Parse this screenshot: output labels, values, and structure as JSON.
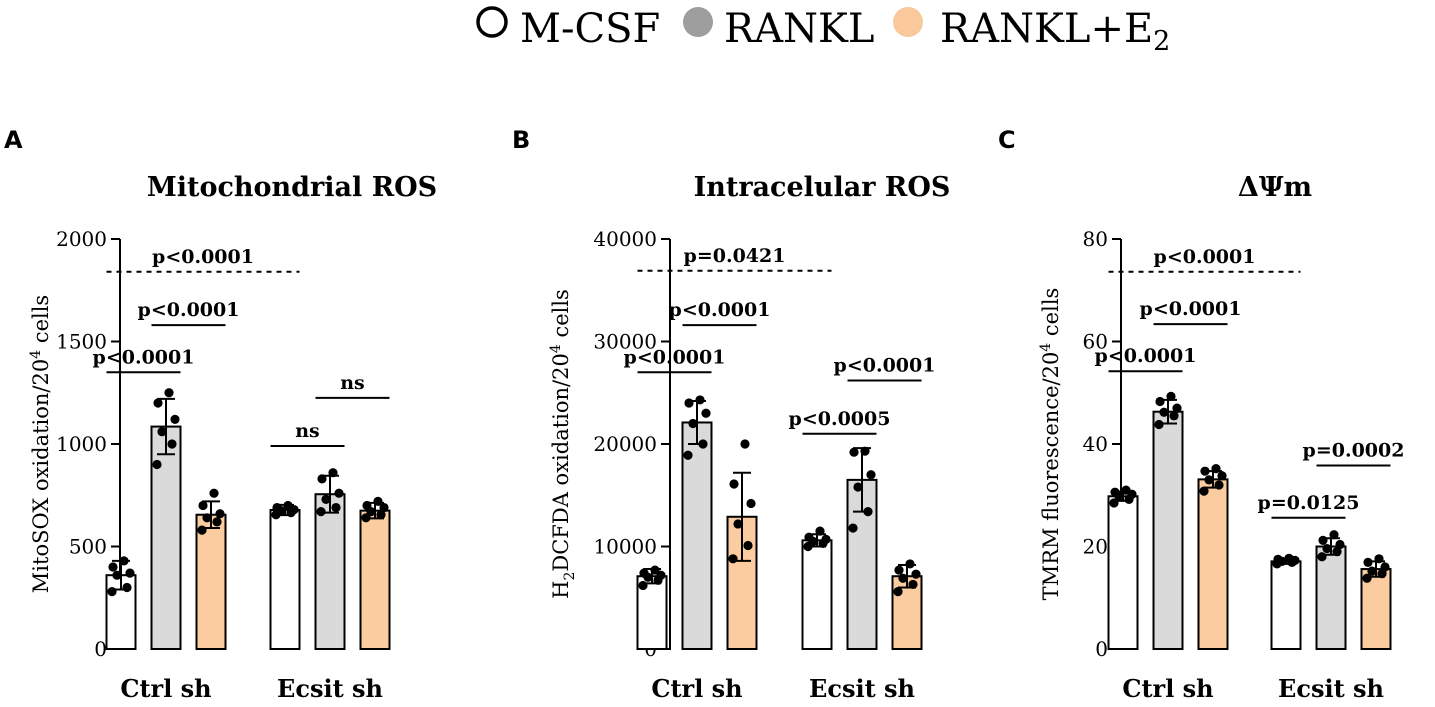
{
  "legend": {
    "items": [
      {
        "label": "M-CSF",
        "fill": "#ffffff",
        "stroke": "#000000"
      },
      {
        "label": "RANKL",
        "fill": "#9e9e9e",
        "stroke": "#9e9e9e"
      },
      {
        "label": "RANKL+E",
        "sub": "2",
        "fill": "#f9c99c",
        "stroke": "#f9c99c"
      }
    ]
  },
  "colors": {
    "mcsf": "#ffffff",
    "rankl": "#dadada",
    "e2": "#fbcc9f",
    "axis": "#000000"
  },
  "chart_data": [
    {
      "panel": "A",
      "type": "bar",
      "title": "Mitochondrial ROS",
      "ylabel": "MitoSOX oxidation/20",
      "ylabel_sup": "4",
      "ylabel_suffix": " cells",
      "ylim": [
        0,
        2000
      ],
      "yticks": [
        0,
        500,
        1000,
        1500,
        2000
      ],
      "categories": [
        "Ctrl sh",
        "Ecsit sh"
      ],
      "series": [
        {
          "name": "M-CSF",
          "means": [
            360,
            678
          ],
          "sd": [
            70,
            25
          ],
          "points": [
            [
              280,
              300,
              360,
              370,
              400,
              430
            ],
            [
              655,
              665,
              675,
              680,
              690,
              700
            ]
          ]
        },
        {
          "name": "RANKL",
          "means": [
            1085,
            755
          ],
          "sd": [
            135,
            90
          ],
          "points": [
            [
              900,
              1000,
              1060,
              1120,
              1200,
              1250
            ],
            [
              670,
              690,
              730,
              760,
              830,
              860
            ]
          ]
        },
        {
          "name": "RANKL+E2",
          "means": [
            655,
            675
          ],
          "sd": [
            65,
            38
          ],
          "points": [
            [
              580,
              620,
              640,
              660,
              700,
              760
            ],
            [
              640,
              655,
              670,
              690,
              700,
              720
            ]
          ]
        }
      ],
      "comparisons": [
        {
          "from": [
            0,
            0
          ],
          "to": [
            1,
            0
          ],
          "label": "p<0.0001",
          "y": 1840,
          "dashed": true
        },
        {
          "from": [
            0,
            1
          ],
          "to": [
            0,
            2
          ],
          "label": "p<0.0001",
          "y": 1580,
          "dashed": false
        },
        {
          "from": [
            0,
            0
          ],
          "to": [
            0,
            1
          ],
          "label": "p<0.0001",
          "y": 1350,
          "dashed": false
        },
        {
          "from": [
            1,
            1
          ],
          "to": [
            1,
            2
          ],
          "label": "ns",
          "y": 1225,
          "dashed": false
        },
        {
          "from": [
            1,
            0
          ],
          "to": [
            1,
            1
          ],
          "label": "ns",
          "y": 990,
          "dashed": false
        }
      ]
    },
    {
      "panel": "B",
      "type": "bar",
      "title": "Intracelular ROS",
      "ylabel": "H",
      "ylabel_sub": "2",
      "ylabel_mid": "DCFDA oxidation/20",
      "ylabel_sup": "4",
      "ylabel_suffix": " cells",
      "ylim": [
        0,
        40000
      ],
      "yticks": [
        0,
        10000,
        20000,
        30000,
        40000
      ],
      "categories": [
        "Ctrl sh",
        "Ecsit sh"
      ],
      "series": [
        {
          "name": "M-CSF",
          "means": [
            7100,
            10600
          ],
          "sd": [
            700,
            600
          ],
          "points": [
            [
              6200,
              6700,
              7000,
              7200,
              7400,
              7700
            ],
            [
              10000,
              10300,
              10500,
              10700,
              10900,
              11500
            ]
          ]
        },
        {
          "name": "RANKL",
          "means": [
            22100,
            16500
          ],
          "sd": [
            2100,
            3100
          ],
          "points": [
            [
              18900,
              20000,
              22000,
              23000,
              24000,
              24300
            ],
            [
              11800,
              13400,
              15800,
              17000,
              19200,
              19300
            ]
          ]
        },
        {
          "name": "RANKL+E2",
          "means": [
            12900,
            7100
          ],
          "sd": [
            4300,
            1100
          ],
          "points": [
            [
              8800,
              10100,
              12200,
              14200,
              16100,
              20000
            ],
            [
              5600,
              6300,
              6900,
              7300,
              7700,
              8300
            ]
          ]
        }
      ],
      "comparisons": [
        {
          "from": [
            0,
            0
          ],
          "to": [
            1,
            0
          ],
          "label": "p=0.0421",
          "y": 36900,
          "dashed": true
        },
        {
          "from": [
            0,
            1
          ],
          "to": [
            0,
            2
          ],
          "label": "p<0.0001",
          "y": 31600,
          "dashed": false
        },
        {
          "from": [
            0,
            0
          ],
          "to": [
            0,
            1
          ],
          "label": "p<0.0001",
          "y": 27000,
          "dashed": false
        },
        {
          "from": [
            1,
            1
          ],
          "to": [
            1,
            2
          ],
          "label": "p<0.0001",
          "y": 26200,
          "dashed": false
        },
        {
          "from": [
            1,
            0
          ],
          "to": [
            1,
            1
          ],
          "label": "p<0.0005",
          "y": 21000,
          "dashed": false
        }
      ]
    },
    {
      "panel": "C",
      "type": "bar",
      "title": "ΔΨm",
      "ylabel": "TMRM fluorescence/20",
      "ylabel_sup": "4",
      "ylabel_suffix": " cells",
      "ylim": [
        0,
        80
      ],
      "yticks": [
        0,
        20,
        40,
        60,
        80
      ],
      "categories": [
        "Ctrl sh",
        "Ecsit sh"
      ],
      "series": [
        {
          "name": "M-CSF",
          "means": [
            29.8,
            17.1
          ],
          "sd": [
            0.9,
            0.5
          ],
          "points": [
            [
              28.5,
              29.2,
              29.8,
              30.2,
              30.6,
              31.0
            ],
            [
              16.6,
              16.9,
              17.1,
              17.3,
              17.5,
              17.7
            ]
          ]
        },
        {
          "name": "RANKL",
          "means": [
            46.3,
            20.0
          ],
          "sd": [
            2.3,
            1.6
          ],
          "points": [
            [
              43.8,
              45.5,
              46.2,
              47.0,
              48.3,
              49.3
            ],
            [
              18.0,
              19.0,
              19.6,
              20.4,
              21.2,
              22.3
            ]
          ]
        },
        {
          "name": "RANKL+E2",
          "means": [
            33.1,
            15.6
          ],
          "sd": [
            1.6,
            1.5
          ],
          "points": [
            [
              30.8,
              32.0,
              33.0,
              33.8,
              34.7,
              35.2
            ],
            [
              13.8,
              14.7,
              15.2,
              16.0,
              16.9,
              17.6
            ]
          ]
        }
      ],
      "comparisons": [
        {
          "from": [
            0,
            0
          ],
          "to": [
            1,
            0
          ],
          "label": "p<0.0001",
          "y": 73.6,
          "dashed": true
        },
        {
          "from": [
            0,
            1
          ],
          "to": [
            0,
            2
          ],
          "label": "p<0.0001",
          "y": 63.4,
          "dashed": false
        },
        {
          "from": [
            0,
            0
          ],
          "to": [
            0,
            1
          ],
          "label": "p<0.0001",
          "y": 54.2,
          "dashed": false
        },
        {
          "from": [
            1,
            1
          ],
          "to": [
            1,
            2
          ],
          "label": "p=0.0002",
          "y": 35.8,
          "dashed": false
        },
        {
          "from": [
            1,
            0
          ],
          "to": [
            1,
            1
          ],
          "label": "p=0.0125",
          "y": 25.6,
          "dashed": false
        }
      ]
    }
  ]
}
